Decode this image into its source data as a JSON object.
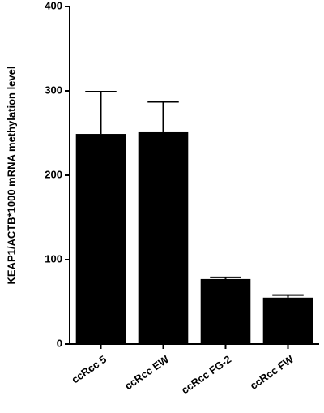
{
  "chart_data": {
    "type": "bar",
    "y_label": "KEAP1/ACTB*1000 mRNA methylation level",
    "categories": [
      "ccRcc 5",
      "ccRcc EW",
      "ccRcc FG-2",
      "ccRcc FW"
    ],
    "values": [
      249,
      251,
      77,
      55
    ],
    "errors": [
      50,
      36,
      2,
      3
    ],
    "color": "#000000",
    "ylim": [
      0,
      400
    ],
    "yticks": [
      0,
      100,
      200,
      300,
      400
    ]
  }
}
